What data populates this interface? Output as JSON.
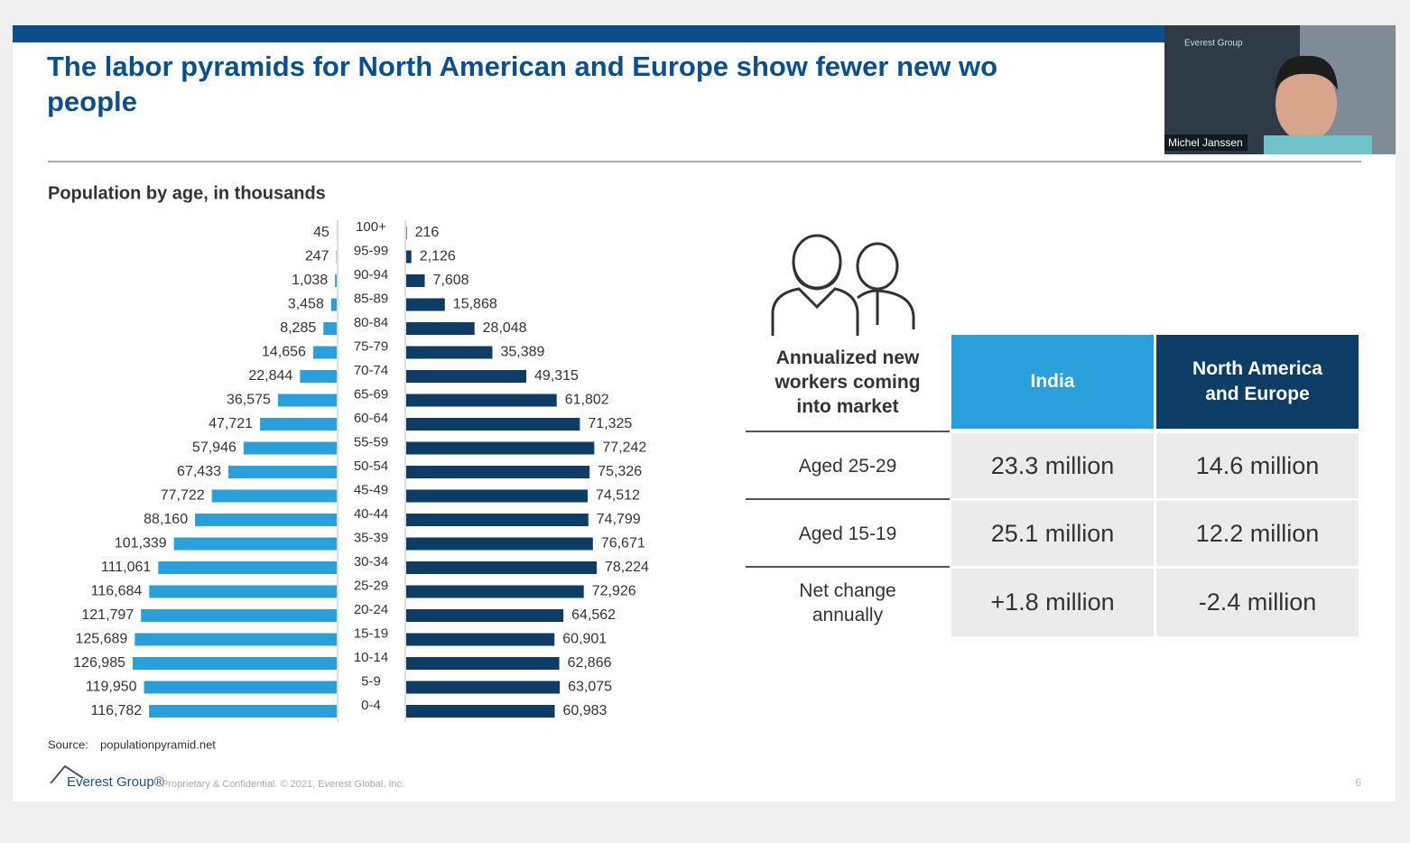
{
  "slide": {
    "title_lines": [
      "The labor pyramids for North American and Europe show fewer new wo",
      "people"
    ],
    "source_label": "Source:",
    "source": "populationpyramid.net",
    "footer": {
      "logo": "Everest Group®",
      "notice": "Proprietary & Confidential. © 2021, Everest Global, Inc.",
      "page": "6"
    }
  },
  "video": {
    "logo": "Everest Group",
    "name": "Michel Janssen"
  },
  "chart_data": {
    "type": "pyramid",
    "title": "Population by age, in thousands",
    "categories": [
      "100+",
      "95-99",
      "90-94",
      "85-89",
      "80-84",
      "75-79",
      "70-74",
      "65-69",
      "60-64",
      "55-59",
      "50-54",
      "45-49",
      "40-44",
      "35-39",
      "30-34",
      "25-29",
      "20-24",
      "15-19",
      "10-14",
      "5-9",
      "0-4"
    ],
    "series": [
      {
        "color": "#29a0dc",
        "values": [
          45,
          247,
          1038,
          3458,
          8285,
          14656,
          22844,
          36575,
          47721,
          57946,
          67433,
          77722,
          88160,
          101339,
          111061,
          116684,
          121797,
          125689,
          126985,
          119950,
          116782
        ],
        "value_labels": [
          "45",
          "247",
          "1,038",
          "3,458",
          "8,285",
          "14,656",
          "22,844",
          "36,575",
          "47,721",
          "57,946",
          "67,433",
          "77,722",
          "88,160",
          "101,339",
          "111,061",
          "116,684",
          "121,797",
          "125,689",
          "126,985",
          "119,950",
          "116,782"
        ]
      },
      {
        "color": "#0d3d66",
        "values": [
          216,
          2126,
          7608,
          15868,
          28048,
          35389,
          49315,
          61802,
          71325,
          77242,
          75326,
          74512,
          74799,
          76671,
          78224,
          72926,
          64562,
          60901,
          62866,
          63075,
          60983
        ],
        "value_labels": [
          "216",
          "2,126",
          "7,608",
          "15,868",
          "28,048",
          "35,389",
          "49,315",
          "61,802",
          "71,325",
          "77,242",
          "75,326",
          "74,512",
          "74,799",
          "76,671",
          "78,224",
          "72,926",
          "64,562",
          "60,901",
          "62,866",
          "63,075",
          "60,983"
        ]
      }
    ]
  },
  "table": {
    "header": [
      "Annualized new workers coming into market",
      "India",
      "North America and Europe"
    ],
    "rows": [
      [
        "Aged 25-29",
        "23.3 million",
        "14.6 million"
      ],
      [
        "Aged 15-19",
        "25.1 million",
        "12.2 million"
      ],
      [
        "Net change annually",
        "+1.8 million",
        "-2.4 million"
      ]
    ]
  }
}
